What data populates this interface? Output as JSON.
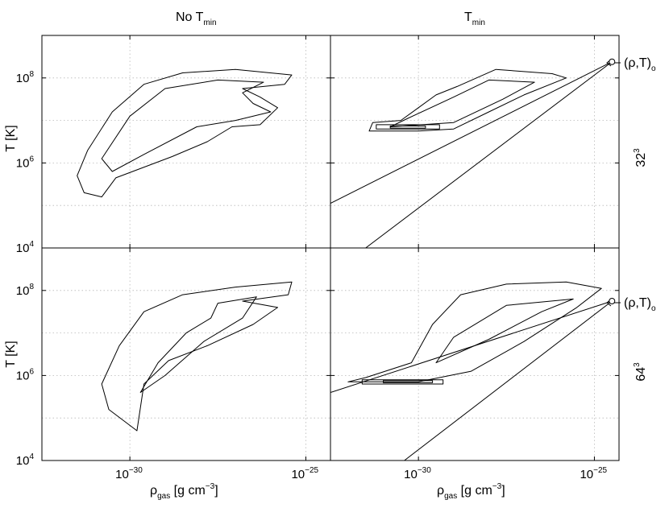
{
  "figure": {
    "column_titles": [
      {
        "base": "No T",
        "sub": "min"
      },
      {
        "base": "T",
        "sub": "min"
      }
    ],
    "row_labels": [
      {
        "base": "32",
        "sup": "3"
      },
      {
        "base": "64",
        "sup": "3"
      }
    ],
    "annotation": {
      "text": "(ρ,T)",
      "sub": "o"
    },
    "xlabel": {
      "base": "ρ",
      "sub": "gas",
      "rest1": " [g cm",
      "sup": "−3",
      "rest2": "]"
    },
    "ylabel": "T [K]"
  },
  "chart_data": {
    "type": "contour",
    "x_scale": "log",
    "y_scale": "log",
    "xlim_log10": [
      -32.5,
      -24.3
    ],
    "ylim_log10": [
      4,
      9
    ],
    "x_ticks": [
      {
        "log10": -30,
        "base": "10",
        "exp": "−30"
      },
      {
        "log10": -25,
        "base": "10",
        "exp": "−25"
      }
    ],
    "y_ticks": [
      {
        "log10": 4,
        "base": "10",
        "exp": "4"
      },
      {
        "log10": 6,
        "base": "10",
        "exp": "6"
      },
      {
        "log10": 8,
        "base": "10",
        "exp": "8"
      }
    ],
    "grid": true,
    "panels": [
      {
        "row": "32^3",
        "column": "No T_min",
        "contours": [
          [
            [
              -31.3,
              5.3
            ],
            [
              -31.5,
              5.7
            ],
            [
              -31.2,
              6.3
            ],
            [
              -30.5,
              7.2
            ],
            [
              -29.6,
              7.85
            ],
            [
              -28.5,
              8.12
            ],
            [
              -27.0,
              8.2
            ],
            [
              -25.4,
              8.07
            ],
            [
              -25.6,
              7.85
            ],
            [
              -26.8,
              7.75
            ],
            [
              -26.3,
              7.55
            ],
            [
              -25.8,
              7.3
            ],
            [
              -26.3,
              6.9
            ],
            [
              -27.1,
              6.85
            ],
            [
              -27.8,
              6.5
            ],
            [
              -28.8,
              6.15
            ],
            [
              -30.4,
              5.65
            ],
            [
              -30.8,
              5.2
            ],
            [
              -31.3,
              5.3
            ]
          ],
          [
            [
              -30.8,
              6.1
            ],
            [
              -30.0,
              7.1
            ],
            [
              -29.0,
              7.75
            ],
            [
              -27.5,
              7.95
            ],
            [
              -26.2,
              7.9
            ],
            [
              -26.8,
              7.65
            ],
            [
              -26.5,
              7.4
            ],
            [
              -26.0,
              7.2
            ],
            [
              -27.0,
              7.0
            ],
            [
              -28.1,
              6.85
            ],
            [
              -29.6,
              6.2
            ],
            [
              -30.5,
              5.8
            ],
            [
              -30.8,
              6.1
            ]
          ]
        ]
      },
      {
        "row": "32^3",
        "column": "T_min",
        "contours": [
          [
            [
              -31.4,
              6.75
            ],
            [
              -30.0,
              6.75
            ],
            [
              -29.0,
              6.8
            ],
            [
              -28.0,
              7.2
            ],
            [
              -27.0,
              7.6
            ],
            [
              -25.8,
              8.0
            ],
            [
              -26.2,
              8.1
            ],
            [
              -27.8,
              8.2
            ],
            [
              -28.9,
              7.8
            ],
            [
              -29.5,
              7.6
            ],
            [
              -30.0,
              7.3
            ],
            [
              -30.5,
              7.0
            ],
            [
              -31.3,
              6.95
            ],
            [
              -31.4,
              6.75
            ]
          ],
          [
            [
              -30.8,
              6.85
            ],
            [
              -29.0,
              6.95
            ],
            [
              -27.6,
              7.5
            ],
            [
              -26.7,
              7.9
            ],
            [
              -28.0,
              7.95
            ],
            [
              -29.0,
              7.55
            ],
            [
              -30.3,
              7.05
            ],
            [
              -30.8,
              6.85
            ]
          ],
          [
            [
              -31.2,
              6.8
            ],
            [
              -29.4,
              6.8
            ],
            [
              -29.4,
              6.9
            ],
            [
              -31.2,
              6.9
            ],
            [
              -31.2,
              6.8
            ]
          ],
          [
            [
              -30.8,
              6.82
            ],
            [
              -29.8,
              6.82
            ],
            [
              -29.8,
              6.87
            ],
            [
              -30.8,
              6.87
            ],
            [
              -30.8,
              6.82
            ]
          ]
        ],
        "lines": [
          {
            "from": [
              -32.5,
              5.05
            ],
            "to": [
              -24.5,
              8.38
            ]
          },
          {
            "from": [
              -31.5,
              4.0
            ],
            "to": [
              -24.5,
              8.38
            ]
          }
        ],
        "marker": {
          "log10_rho": -24.5,
          "log10_T": 8.38
        }
      },
      {
        "row": "64^3",
        "column": "No T_min",
        "contours": [
          [
            [
              -29.8,
              4.7
            ],
            [
              -30.6,
              5.2
            ],
            [
              -30.8,
              5.8
            ],
            [
              -30.3,
              6.7
            ],
            [
              -29.6,
              7.5
            ],
            [
              -28.5,
              7.9
            ],
            [
              -27.0,
              8.08
            ],
            [
              -25.4,
              8.2
            ],
            [
              -25.5,
              7.9
            ],
            [
              -26.8,
              7.75
            ],
            [
              -25.8,
              7.6
            ],
            [
              -26.5,
              7.2
            ],
            [
              -27.8,
              6.7
            ],
            [
              -28.9,
              6.35
            ],
            [
              -29.6,
              5.8
            ],
            [
              -29.8,
              4.7
            ]
          ],
          [
            [
              -29.7,
              5.6
            ],
            [
              -29.2,
              6.3
            ],
            [
              -28.4,
              7.0
            ],
            [
              -27.7,
              7.35
            ],
            [
              -27.5,
              7.7
            ],
            [
              -26.4,
              7.85
            ],
            [
              -26.8,
              7.35
            ],
            [
              -27.9,
              6.8
            ],
            [
              -29.0,
              6.0
            ],
            [
              -29.7,
              5.6
            ]
          ]
        ]
      },
      {
        "row": "64^3",
        "column": "T_min",
        "contours": [
          [
            [
              -32.0,
              5.85
            ],
            [
              -30.0,
              5.85
            ],
            [
              -28.5,
              6.1
            ],
            [
              -27.0,
              6.8
            ],
            [
              -25.5,
              7.6
            ],
            [
              -24.8,
              8.05
            ],
            [
              -25.8,
              8.2
            ],
            [
              -27.5,
              8.15
            ],
            [
              -28.8,
              7.9
            ],
            [
              -29.6,
              7.2
            ],
            [
              -30.2,
              6.3
            ],
            [
              -31.5,
              5.95
            ],
            [
              -32.0,
              5.85
            ]
          ],
          [
            [
              -29.5,
              6.3
            ],
            [
              -28.0,
              6.85
            ],
            [
              -26.5,
              7.5
            ],
            [
              -25.6,
              7.8
            ],
            [
              -27.5,
              7.65
            ],
            [
              -29.0,
              6.9
            ],
            [
              -29.5,
              6.3
            ]
          ],
          [
            [
              -31.6,
              5.8
            ],
            [
              -29.3,
              5.8
            ],
            [
              -29.3,
              5.9
            ],
            [
              -31.6,
              5.9
            ],
            [
              -31.6,
              5.8
            ]
          ],
          [
            [
              -31.0,
              5.83
            ],
            [
              -29.6,
              5.83
            ],
            [
              -29.6,
              5.88
            ],
            [
              -31.0,
              5.88
            ],
            [
              -31.0,
              5.83
            ]
          ]
        ],
        "lines": [
          {
            "from": [
              -32.5,
              5.6
            ],
            "to": [
              -24.5,
              7.75
            ]
          },
          {
            "from": [
              -30.4,
              4.0
            ],
            "to": [
              -24.5,
              7.75
            ]
          }
        ],
        "marker": {
          "log10_rho": -24.5,
          "log10_T": 7.75
        }
      }
    ]
  }
}
